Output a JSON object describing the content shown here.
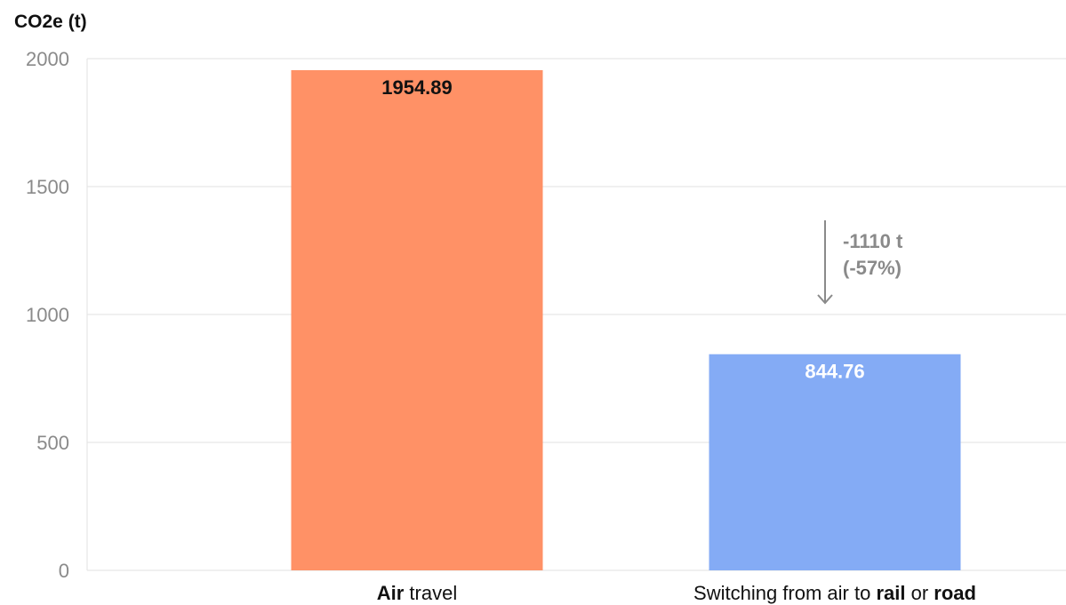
{
  "chart_data": {
    "type": "bar",
    "ylabel": "CO2e (t)",
    "ylim": [
      0,
      2000
    ],
    "yticks": [
      0,
      500,
      1000,
      1500,
      2000
    ],
    "grid": true,
    "categories": [
      {
        "label": "Air travel",
        "parts": [
          {
            "text": "Air",
            "bold": true
          },
          {
            "text": " travel",
            "bold": false
          }
        ]
      },
      {
        "label": "Switching from air to rail or road",
        "parts": [
          {
            "text": "Switching from air to ",
            "bold": false
          },
          {
            "text": "rail",
            "bold": true
          },
          {
            "text": " or ",
            "bold": false
          },
          {
            "text": "road",
            "bold": true
          }
        ]
      }
    ],
    "values": [
      1954.89,
      844.76
    ],
    "value_labels": [
      "1954.89",
      "844.76"
    ],
    "colors": [
      "#ff9166",
      "#84abf5"
    ],
    "value_label_colors": [
      "#111111",
      "#ffffff"
    ],
    "annotation": {
      "lines": [
        "-1110 t",
        "(-57%)"
      ],
      "from": 1954.89,
      "to": 844.76
    }
  }
}
